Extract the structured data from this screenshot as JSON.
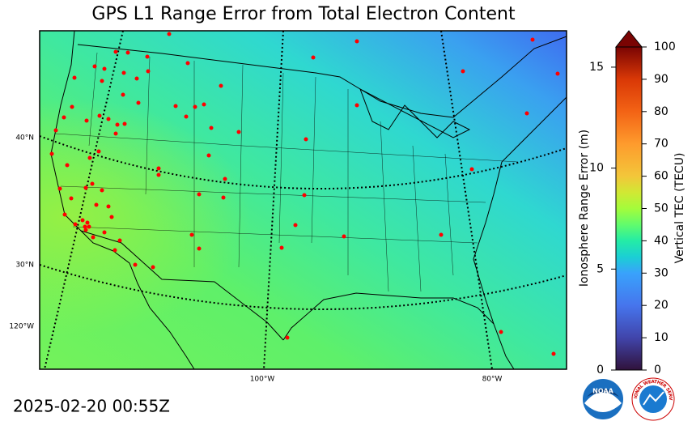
{
  "title": "GPS L1 Range Error from Total Electron Content",
  "timestamp": "2025-02-20 00:55Z",
  "map": {
    "lat_labels": [
      "40°N",
      "30°N"
    ],
    "lon_labels": [
      "120°W",
      "100°W",
      "80°W"
    ]
  },
  "colorbar": {
    "tec_label": "Vertical TEC (TECU)",
    "range_label": "Ionosphere Range Error (m)",
    "tec_lim": [
      0,
      100
    ],
    "tec_ticks": [
      0,
      10,
      20,
      30,
      40,
      50,
      60,
      70,
      80,
      90,
      100
    ],
    "range_lim": [
      0,
      16
    ],
    "range_ticks": [
      0,
      5,
      10,
      15
    ]
  },
  "logos": {
    "noaa": "NOAA",
    "nws": "NATIONAL WEATHER SERVICE"
  }
}
